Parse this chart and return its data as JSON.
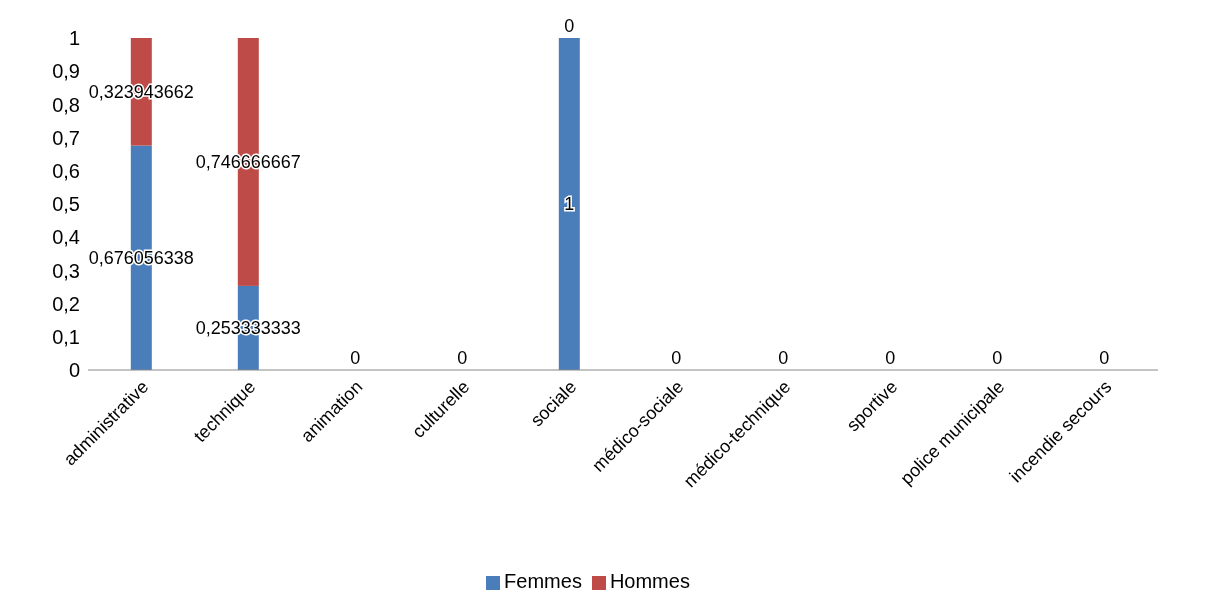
{
  "chart_data": {
    "type": "bar",
    "stacked": true,
    "categories": [
      "administrative",
      "technique",
      "animation",
      "culturelle",
      "sociale",
      "médico-sociale",
      "médico-technique",
      "sportive",
      "police municipale",
      "incendie secours"
    ],
    "series": [
      {
        "name": "Femmes",
        "color": "#4a7ebb",
        "values": [
          0.676056338,
          0.253333333,
          0,
          0,
          1,
          0,
          0,
          0,
          0,
          0
        ],
        "value_labels": [
          "0,676056338",
          "0,253333333",
          "0",
          "0",
          "1",
          "0",
          "0",
          "0",
          "0",
          "0"
        ]
      },
      {
        "name": "Hommes",
        "color": "#be4b48",
        "values": [
          0.323943662,
          0.746666667,
          null,
          null,
          0,
          null,
          null,
          null,
          null,
          null
        ],
        "value_labels": [
          "0,323943662",
          "0,746666667",
          null,
          null,
          "0",
          null,
          null,
          null,
          null,
          null
        ]
      }
    ],
    "ylim": [
      0,
      1
    ],
    "yticks": [
      0,
      {
        "value": 0.1,
        "label": "0,1"
      },
      {
        "value": 0.2,
        "label": "0,2"
      },
      {
        "value": 0.3,
        "label": "0,3"
      },
      {
        "value": 0.4,
        "label": "0,4"
      },
      {
        "value": 0.5,
        "label": "0,5"
      },
      {
        "value": 0.6,
        "label": "0,6"
      },
      {
        "value": 0.7,
        "label": "0,7"
      },
      {
        "value": 0.8,
        "label": "0,8"
      },
      {
        "value": 0.9,
        "label": "0,9"
      },
      1
    ],
    "grid": false,
    "legend": "bottom"
  }
}
